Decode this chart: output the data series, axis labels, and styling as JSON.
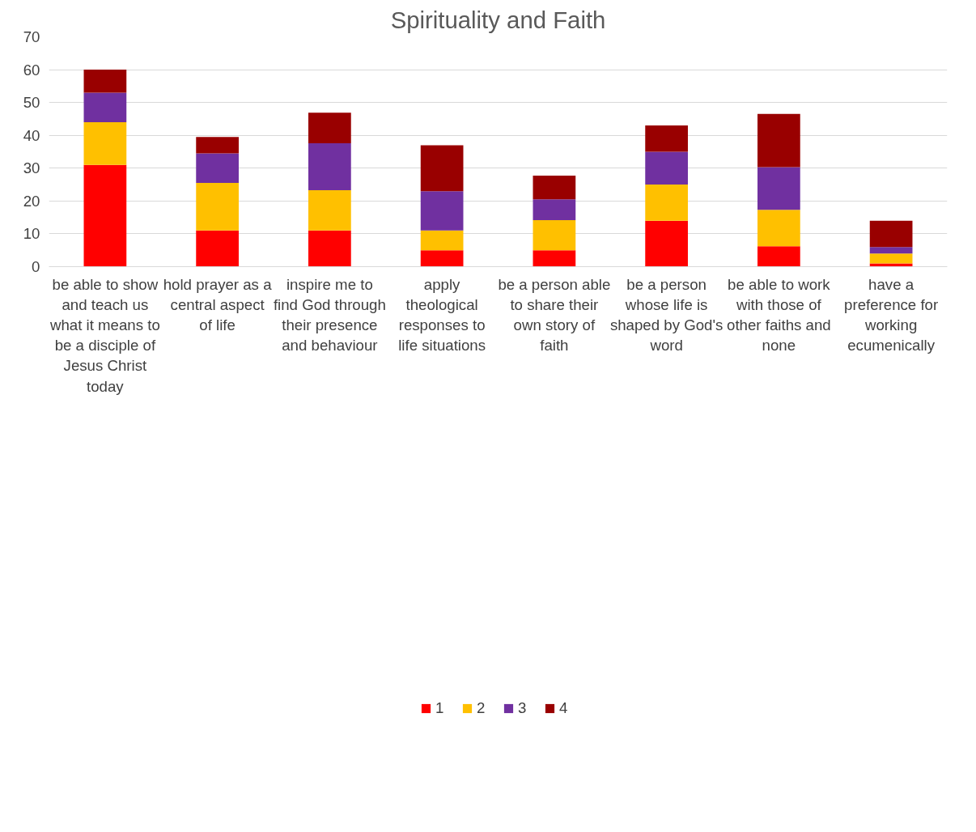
{
  "chart_data": {
    "type": "bar",
    "title": "Spirituality and Faith",
    "stacked": true,
    "categories": [
      "be able to show and teach us what it means to be a disciple of Jesus Christ today",
      "hold prayer as a central aspect of life",
      "inspire me to find God through their presence and behaviour",
      "apply theological responses to life situations",
      "be a person able to share their own story of faith",
      "be a person whose life is shaped by God's word",
      "be able to work with those of other faiths and none",
      "have a preference for working ecumenically"
    ],
    "series": [
      {
        "name": "1",
        "color": "#ff0000",
        "values": [
          31,
          11,
          11,
          5,
          5,
          14,
          6.2,
          1
        ]
      },
      {
        "name": "2",
        "color": "#ffc000",
        "values": [
          13,
          14.5,
          12.3,
          6,
          9.2,
          11,
          11.1,
          3
        ]
      },
      {
        "name": "3",
        "color": "#7030a0",
        "values": [
          9,
          9,
          14.3,
          12,
          6.3,
          10,
          13,
          2
        ]
      },
      {
        "name": "4",
        "color": "#990000",
        "values": [
          7,
          5,
          9.3,
          14,
          7.2,
          8,
          16.2,
          8
        ]
      }
    ],
    "ylim": [
      0,
      70
    ],
    "yticks": [
      0,
      10,
      20,
      30,
      40,
      50,
      60,
      70
    ],
    "grid": "y",
    "legend": "bottom"
  }
}
